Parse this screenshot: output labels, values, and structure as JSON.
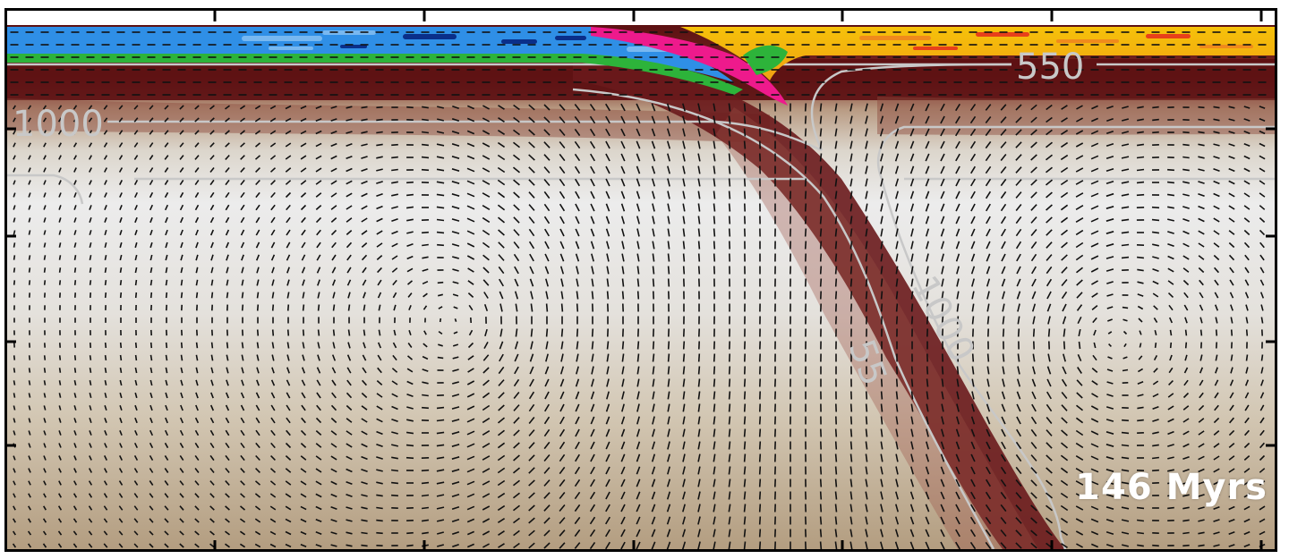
{
  "contour_labels": {
    "surface_550": "550",
    "left_1000": "1000",
    "slab_1000": "1000",
    "slab_partial": "55"
  },
  "time_label": "146 Myrs",
  "colors": {
    "ocean_crust": "#2f8fe6",
    "ocean_dark": "#0a2f8a",
    "ocean_light": "#78b8f0",
    "green_layer": "#2db33a",
    "pink_layer": "#ee1a8c",
    "continent_yellow": "#f6c20a",
    "continent_orange": "#f08a1c",
    "continent_red": "#e8401a",
    "lithosphere": "#5c1012",
    "mantle_light": "#eaeaea",
    "mantle_tan": "#b8a285",
    "contour": "#c8c8c8",
    "arrow": "#111111",
    "frame": "#000000"
  }
}
